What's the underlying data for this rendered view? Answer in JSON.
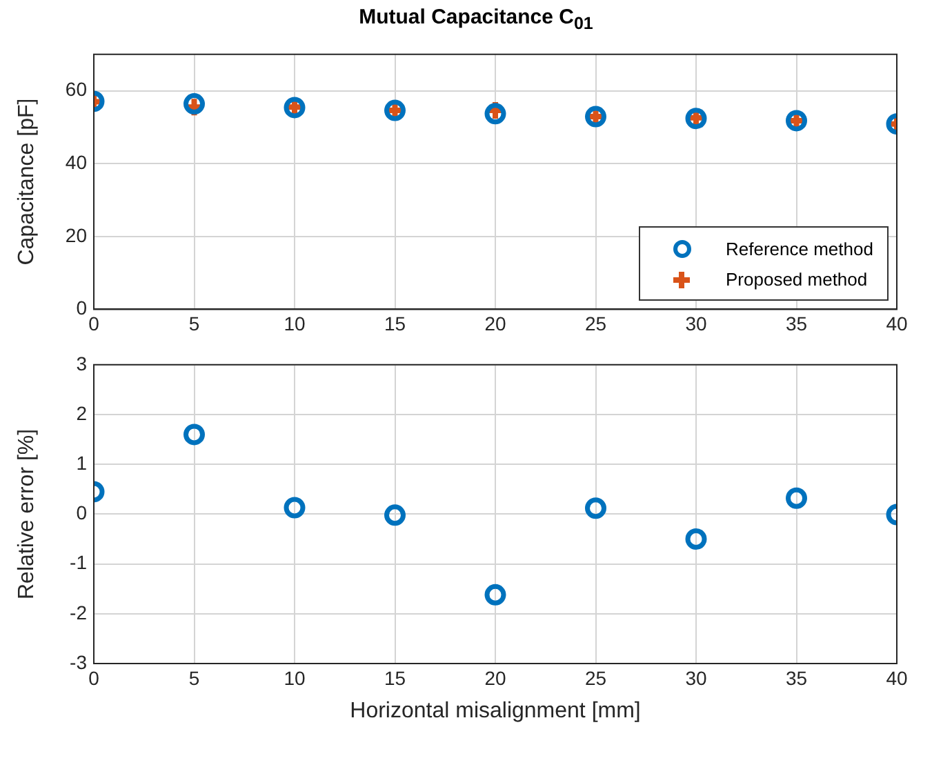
{
  "chart_data": [
    {
      "type": "scatter",
      "title": "Mutual Capacitance C$_{01}$",
      "ylabel": "Capacitance [pF]",
      "x": [
        0,
        5,
        10,
        15,
        20,
        25,
        30,
        35,
        40
      ],
      "xlim": [
        0,
        40
      ],
      "xticks": [
        0,
        5,
        10,
        15,
        20,
        25,
        30,
        35,
        40
      ],
      "ylim": [
        0,
        70
      ],
      "yticks": [
        0,
        20,
        40,
        60
      ],
      "grid": true,
      "legend": "bottom right",
      "series": [
        {
          "name": "Reference method",
          "color": "#0072bd",
          "marker": "circle",
          "values": [
            57.1,
            56.4,
            55.4,
            54.6,
            53.7,
            52.9,
            52.4,
            51.8,
            50.9
          ]
        },
        {
          "name": "Proposed method",
          "color": "#d95319",
          "marker": "cross",
          "values": [
            57.0,
            55.5,
            55.5,
            54.6,
            54.6,
            52.9,
            52.6,
            51.8,
            50.9
          ]
        }
      ]
    },
    {
      "type": "scatter",
      "xlabel": "Horizontal misalignment [mm]",
      "ylabel": "Relative error [%]",
      "x": [
        0,
        5,
        10,
        15,
        20,
        25,
        30,
        35,
        40
      ],
      "xlim": [
        0,
        40
      ],
      "xticks": [
        0,
        5,
        10,
        15,
        20,
        25,
        30,
        35,
        40
      ],
      "ylim": [
        -3,
        3
      ],
      "yticks": [
        -3,
        -2,
        -1,
        0,
        1,
        2,
        3
      ],
      "grid": true,
      "marker": "circle",
      "series": [
        {
          "color": "#0072bd",
          "values": [
            0.45,
            1.6,
            0.13,
            -0.02,
            -1.62,
            0.12,
            -0.5,
            0.32,
            -0.01
          ]
        }
      ]
    }
  ]
}
